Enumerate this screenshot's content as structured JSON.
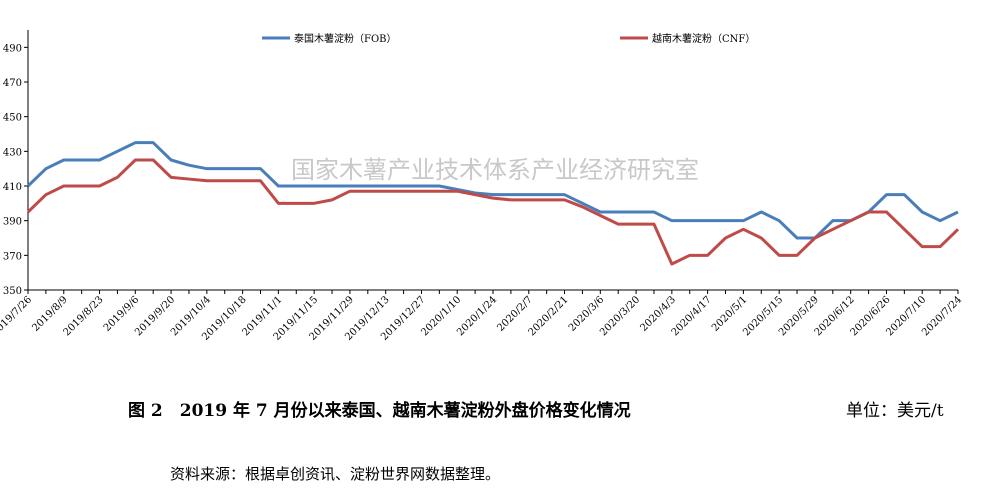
{
  "chart_data": {
    "type": "line",
    "annotations": [
      "国家木薯产业技术体系产业经济研究室"
    ],
    "caption": "图 2　2019 年 7 月份以来泰国、越南木薯淀粉外盘价格变化情况",
    "unit": "单位：美元/t",
    "source": "资料来源：根据卓创资讯、淀粉世界网数据整理。",
    "categories": [
      "2019/7/26",
      null,
      "2019/8/9",
      null,
      "2019/8/23",
      null,
      "2019/9/6",
      null,
      "2019/9/20",
      null,
      "2019/10/4",
      null,
      "2019/10/18",
      null,
      "2019/11/1",
      null,
      "2019/11/15",
      null,
      "2019/11/29",
      null,
      "2019/12/13",
      null,
      "2019/12/27",
      null,
      "2020/1/10",
      null,
      "2020/1/24",
      null,
      "2020/2/7",
      null,
      "2020/2/21",
      null,
      "2020/3/6",
      null,
      "2020/3/20",
      null,
      "2020/4/3",
      null,
      "2020/4/17",
      null,
      "2020/5/1",
      null,
      "2020/5/15",
      null,
      "2020/5/29",
      null,
      "2020/6/12",
      null,
      "2020/6/26",
      null,
      "2020/7/10",
      null,
      "2020/7/24"
    ],
    "series": [
      {
        "name": "泰国木薯淀粉（FOB）",
        "color": "#4a7ebb",
        "values": [
          410,
          420,
          425,
          425,
          425,
          430,
          435,
          435,
          425,
          422,
          420,
          420,
          420,
          420,
          410,
          410,
          410,
          410,
          410,
          410,
          410,
          410,
          410,
          410,
          408,
          406,
          405,
          405,
          405,
          405,
          405,
          400,
          395,
          395,
          395,
          395,
          390,
          390,
          390,
          390,
          390,
          395,
          390,
          380,
          380,
          390,
          390,
          395,
          405,
          405,
          395,
          390,
          395
        ]
      },
      {
        "name": "越南木薯淀粉（CNF）",
        "color": "#be4b48",
        "values": [
          395,
          405,
          410,
          410,
          410,
          415,
          425,
          425,
          415,
          414,
          413,
          413,
          413,
          413,
          400,
          400,
          400,
          402,
          407,
          407,
          407,
          407,
          407,
          407,
          407,
          405,
          403,
          402,
          402,
          402,
          402,
          398,
          393,
          388,
          388,
          388,
          365,
          370,
          370,
          380,
          385,
          380,
          370,
          370,
          380,
          385,
          390,
          395,
          395,
          385,
          375,
          375,
          385
        ]
      }
    ],
    "ylim": [
      350,
      500
    ],
    "yticks": [
      350,
      370,
      390,
      410,
      430,
      450,
      470,
      490
    ],
    "grid": false
  }
}
